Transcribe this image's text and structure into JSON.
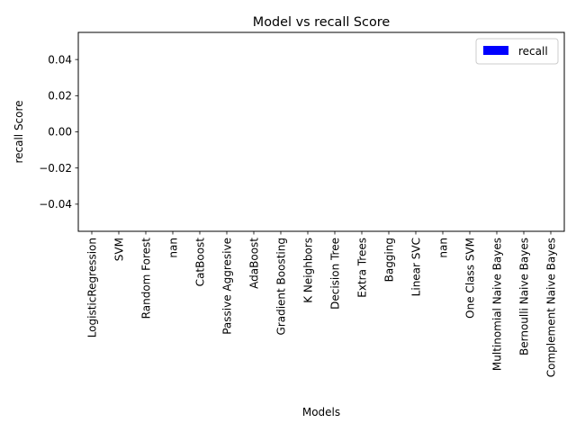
{
  "chart_data": {
    "type": "bar",
    "title": "Model vs recall Score",
    "xlabel": "Models",
    "ylabel": "recall Score",
    "categories": [
      "LogisticRegression",
      "SVM",
      "Random Forest",
      "nan",
      "CatBoost",
      "Passive Aggresive",
      "AdaBoost",
      "Gradient Boosting",
      "K Neighbors",
      "Decision Tree",
      "Extra Trees",
      "Bagging",
      "Linear SVC",
      "nan",
      "One Class SVM",
      "Multinomial Naive Bayes",
      "Bernoulli Naive Bayes",
      "Complement Naive Bayes"
    ],
    "series": [
      {
        "name": "recall",
        "color": "#0000ff",
        "values": [
          0,
          0,
          0,
          null,
          0,
          0,
          0,
          0,
          0,
          0,
          0,
          0,
          0,
          null,
          0,
          0,
          0,
          0
        ]
      }
    ],
    "ylim": [
      -0.055,
      0.055
    ],
    "yticks": [
      -0.04,
      -0.02,
      0.0,
      0.02,
      0.04
    ],
    "ytick_labels": [
      "−0.04",
      "−0.02",
      "0.00",
      "0.02",
      "0.04"
    ],
    "grid": false,
    "legend": "top-right"
  }
}
